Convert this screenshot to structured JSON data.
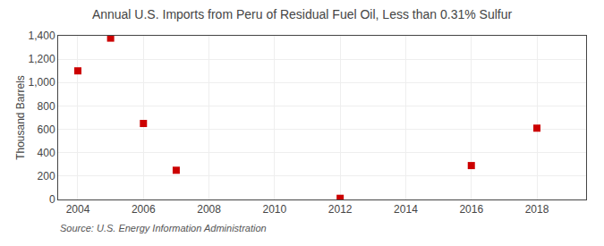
{
  "chart_data": {
    "type": "scatter",
    "title": "Annual U.S. Imports from Peru of Residual Fuel Oil, Less than 0.31% Sulfur",
    "ylabel": "Thousand Barrels",
    "annotations": [
      "Source: U.S. Energy Information Administration"
    ],
    "x": [
      2004,
      2005,
      2006,
      2007,
      2012,
      2016,
      2018
    ],
    "values": [
      1100,
      1380,
      650,
      250,
      10,
      290,
      610
    ],
    "color": "#cc0000",
    "marker": "square",
    "xlim": [
      2003.4,
      2019.5
    ],
    "ylim": [
      0,
      1400
    ],
    "xticks": [
      2004,
      2006,
      2008,
      2010,
      2012,
      2014,
      2016,
      2018
    ],
    "yticks": [
      0,
      200,
      400,
      600,
      800,
      {
        "value": 1000,
        "label": "1,000"
      },
      {
        "value": 1200,
        "label": "1,200"
      },
      {
        "value": 1400,
        "label": "1,400"
      }
    ],
    "grid": true
  }
}
